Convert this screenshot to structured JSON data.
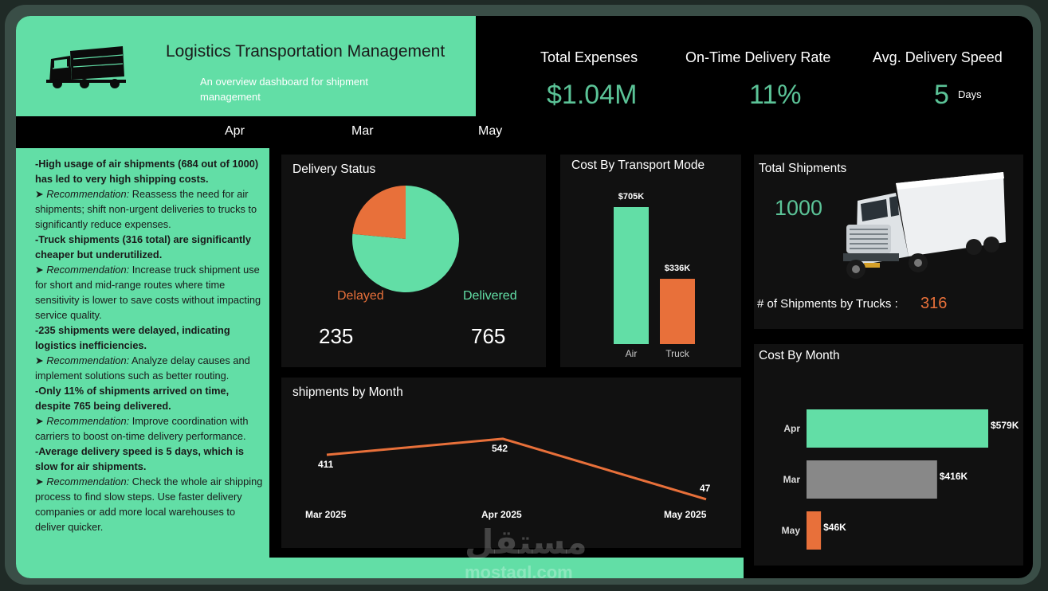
{
  "header": {
    "title": "Logistics Transportation Management",
    "subtitle": "An overview dashboard for shipment management"
  },
  "tabs": [
    {
      "label": "Apr"
    },
    {
      "label": "Mar"
    },
    {
      "label": "May"
    }
  ],
  "kpis": {
    "total_expenses": {
      "label": "Total Expenses",
      "value": "$1.04M"
    },
    "on_time_rate": {
      "label": "On-Time Delivery Rate",
      "value": "11%"
    },
    "avg_speed": {
      "label": "Avg. Delivery Speed",
      "value": "5",
      "unit": "Days"
    }
  },
  "insights": [
    {
      "text": "-High usage of air shipments (684 out of 1000) has led to very high shipping costs.",
      "rec_label": "Recommendation:",
      "rec_text": "Reassess the need for air shipments; shift non-urgent deliveries to trucks to significantly reduce expenses."
    },
    {
      "text": "-Truck shipments (316 total) are significantly cheaper but underutilized.",
      "rec_label": "Recommendation:",
      "rec_text": "Increase truck shipment use for short and mid-range routes where time sensitivity is lower to save costs without impacting service quality."
    },
    {
      "text": "-235 shipments were delayed, indicating logistics inefficiencies.",
      "rec_label": "Recommendation:",
      "rec_text": "Analyze delay causes and implement solutions such as better routing."
    },
    {
      "text": "-Only 11% of shipments arrived on time, despite 765 being delivered.",
      "rec_label": "Recommendation:",
      "rec_text": "Improve coordination with carriers to boost on-time delivery performance."
    },
    {
      "text": "-Average delivery speed is 5 days, which is slow for air shipments.",
      "rec_label": "Recommendation:",
      "rec_text": "Check the whole air shipping process to find slow steps. Use faster delivery companies or add more local warehouses to deliver quicker."
    }
  ],
  "delivery_status": {
    "title": "Delivery Status",
    "delayed_label": "Delayed",
    "delivered_label": "Delivered",
    "delayed_value": "235",
    "delivered_value": "765"
  },
  "cost_by_mode_title": "Cost By Transport Mode",
  "total_shipments": {
    "title": "Total Shipments",
    "value": "1000",
    "trucks_label": "# of Shipments by Trucks :",
    "trucks_value": "316"
  },
  "shipments_by_month_title": "shipments by Month",
  "cost_by_month_title": "Cost By Month",
  "watermark": {
    "arabic": "مستقل",
    "latin": "mostaql.com"
  },
  "colors": {
    "accent": "#62dea6",
    "delayed": "#e8703a",
    "gray": "#888888",
    "value_green": "#5bc397"
  },
  "chart_data": [
    {
      "type": "pie",
      "title": "Delivery Status",
      "categories": [
        "Delivered",
        "Delayed"
      ],
      "values": [
        765,
        235
      ],
      "colors": [
        "#62dea6",
        "#e8703a"
      ]
    },
    {
      "type": "bar",
      "title": "Cost By Transport Mode",
      "categories": [
        "Air",
        "Truck"
      ],
      "values": [
        705,
        336
      ],
      "labels": [
        "$705K",
        "$336K"
      ],
      "unit": "K",
      "colors": [
        "#62dea6",
        "#e8703a"
      ]
    },
    {
      "type": "line",
      "title": "shipments by Month",
      "categories": [
        "Mar 2025",
        "Apr 2025",
        "May 2025"
      ],
      "values": [
        411,
        542,
        47
      ],
      "color": "#e8703a"
    },
    {
      "type": "bar",
      "orientation": "horizontal",
      "title": "Cost By Month",
      "categories": [
        "Apr",
        "Mar",
        "May"
      ],
      "values": [
        579,
        416,
        46
      ],
      "labels": [
        "$579K",
        "$416K",
        "$46K"
      ],
      "unit": "K",
      "colors": [
        "#62dea6",
        "#888888",
        "#e8703a"
      ]
    }
  ]
}
